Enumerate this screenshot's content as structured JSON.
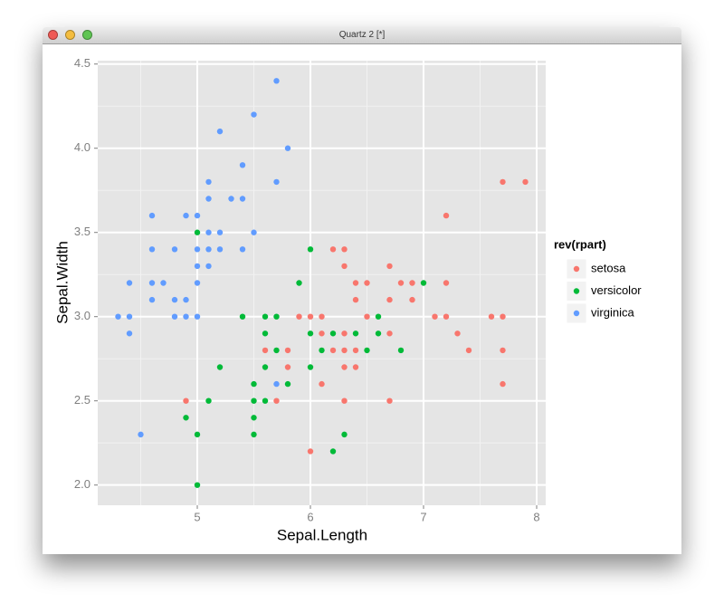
{
  "window_title": "Quartz 2 [*]",
  "chart_data": {
    "type": "scatter",
    "x_label": "Sepal.Length",
    "y_label": "Sepal.Width",
    "legend_title": "rev(rpart)",
    "legend": "right",
    "grid": true,
    "xlim": [
      4.12,
      8.08
    ],
    "ylim": [
      1.88,
      4.52
    ],
    "xticks": [
      5,
      6,
      7,
      8
    ],
    "yticks": [
      {
        "value": 2,
        "label": "2.0"
      },
      {
        "value": 2.5,
        "label": "2.5"
      },
      {
        "value": 3,
        "label": "3.0"
      },
      {
        "value": 3.5,
        "label": "3.5"
      },
      {
        "value": 4,
        "label": "4.0"
      },
      {
        "value": 4.5,
        "label": "4.5"
      }
    ],
    "series": [
      {
        "name": "setosa",
        "color": "#F8766D",
        "x": [
          7.7,
          7.9,
          7.2,
          6.2,
          6.3,
          6.3,
          6.7,
          6.4,
          6.5,
          6.8,
          6.9,
          7.2,
          6.4,
          6.7,
          6.9,
          5.9,
          6.0,
          6.1,
          6.5,
          7.1,
          7.2,
          7.6,
          7.7,
          6.1,
          6.3,
          6.7,
          7.3,
          5.6,
          5.8,
          6.2,
          6.3,
          6.4,
          7.4,
          7.7,
          5.8,
          6.3,
          6.4,
          6.1,
          7.7,
          4.9,
          5.7,
          6.3,
          6.7,
          6.0
        ],
        "values": [
          3.8,
          3.8,
          3.6,
          3.4,
          3.4,
          3.3,
          3.3,
          3.2,
          3.2,
          3.2,
          3.2,
          3.2,
          3.1,
          3.1,
          3.1,
          3.0,
          3.0,
          3.0,
          3.0,
          3.0,
          3.0,
          3.0,
          3.0,
          2.9,
          2.9,
          2.9,
          2.9,
          2.8,
          2.8,
          2.8,
          2.8,
          2.8,
          2.8,
          2.8,
          2.7,
          2.7,
          2.7,
          2.6,
          2.6,
          2.5,
          2.5,
          2.5,
          2.5,
          2.2
        ]
      },
      {
        "name": "versicolor",
        "color": "#00BA38",
        "x": [
          5.0,
          6.0,
          5.9,
          7.0,
          5.4,
          5.6,
          5.7,
          6.6,
          5.6,
          6.0,
          6.2,
          6.4,
          6.6,
          5.7,
          6.1,
          6.5,
          6.8,
          5.2,
          5.6,
          6.0,
          5.5,
          5.8,
          5.1,
          5.5,
          5.6,
          4.9,
          5.5,
          5.0,
          5.5,
          6.3,
          6.2,
          5.0
        ],
        "values": [
          3.5,
          3.4,
          3.2,
          3.2,
          3.0,
          3.0,
          3.0,
          3.0,
          2.9,
          2.9,
          2.9,
          2.9,
          2.9,
          2.8,
          2.8,
          2.8,
          2.8,
          2.7,
          2.7,
          2.7,
          2.6,
          2.6,
          2.5,
          2.5,
          2.5,
          2.4,
          2.4,
          2.3,
          2.3,
          2.3,
          2.2,
          2.0
        ]
      },
      {
        "name": "virginica",
        "color": "#619CFF",
        "x": [
          5.7,
          5.5,
          5.2,
          5.8,
          5.4,
          5.1,
          5.7,
          5.1,
          5.3,
          5.4,
          4.6,
          4.9,
          5.0,
          5.1,
          5.2,
          5.5,
          4.6,
          4.8,
          5.0,
          5.1,
          5.2,
          5.4,
          5.0,
          5.1,
          4.4,
          4.6,
          4.7,
          5.0,
          4.6,
          4.8,
          4.9,
          4.3,
          4.4,
          4.8,
          4.9,
          5.0,
          4.4,
          4.5,
          5.7
        ],
        "values": [
          4.4,
          4.2,
          4.1,
          4.0,
          3.9,
          3.8,
          3.8,
          3.7,
          3.7,
          3.7,
          3.6,
          3.6,
          3.6,
          3.5,
          3.5,
          3.5,
          3.4,
          3.4,
          3.4,
          3.4,
          3.4,
          3.4,
          3.3,
          3.3,
          3.2,
          3.2,
          3.2,
          3.2,
          3.1,
          3.1,
          3.1,
          3.0,
          3.0,
          3.0,
          3.0,
          3.0,
          2.9,
          2.3,
          2.6
        ]
      }
    ]
  }
}
